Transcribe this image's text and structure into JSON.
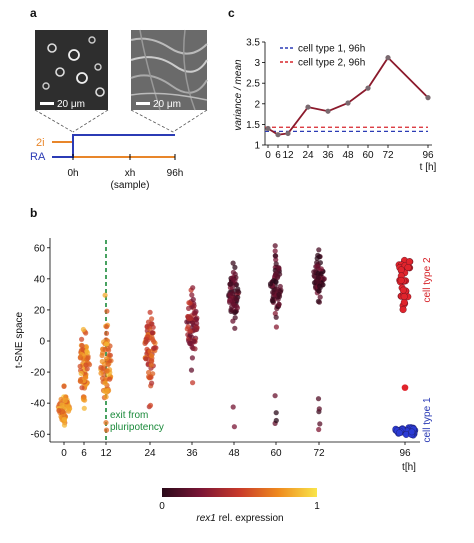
{
  "panels": {
    "a": "a",
    "b": "b",
    "c": "c"
  },
  "panel_a": {
    "scalebar_left": "20 μm",
    "scalebar_right": "20 μm",
    "label_2i": "2i",
    "label_ra": "RA",
    "tick_0h": "0h",
    "tick_xh": "xh",
    "tick_sample": "(sample)",
    "tick_96h": "96h",
    "colors": {
      "2i": "#e8862a",
      "RA": "#2b3bb5"
    }
  },
  "chart_data": [
    {
      "id": "c",
      "type": "line",
      "ylabel": "variance / mean",
      "xlabel": "t [h]",
      "x": [
        0,
        6,
        12,
        24,
        36,
        48,
        60,
        72,
        96
      ],
      "xticks": [
        "0",
        "6",
        "12",
        "24",
        "36",
        "48",
        "60",
        "72",
        "96"
      ],
      "yticks": [
        "1",
        "1.5",
        "2",
        "2.5",
        "3",
        "3.5"
      ],
      "ylim": [
        1.0,
        3.5
      ],
      "series": [
        {
          "values": [
            1.4,
            1.25,
            1.28,
            1.92,
            1.82,
            2.02,
            2.38,
            3.12,
            2.15
          ],
          "color": "#8b1a2c"
        }
      ],
      "reference_lines": [
        {
          "name": "cell type 1, 96h",
          "value": 1.33,
          "color": "#2b3bb5",
          "style": "dashed"
        },
        {
          "name": "cell type 2, 96h",
          "value": 1.43,
          "color": "#d7262c",
          "style": "dashed"
        }
      ],
      "legend_position": "top-left"
    },
    {
      "id": "b",
      "type": "scatter",
      "ylabel": "t-SNE space",
      "xlabel": "t[h]",
      "xticks": [
        "0",
        "6",
        "12",
        "24",
        "36",
        "48",
        "60",
        "72",
        "96"
      ],
      "yticks": [
        "60",
        "40",
        "20",
        "0",
        "-20",
        "-40",
        "-60"
      ],
      "ylim": [
        -65,
        65
      ],
      "annotation": "exit from\npluripotency",
      "annotation_x": 12,
      "side_label_top": "cell type 2",
      "side_label_bottom": "cell type 1",
      "colorbar": {
        "label": "rex1 rel. expression",
        "min": "0",
        "max": "1"
      },
      "columns": [
        {
          "x": 0,
          "y_center": -43,
          "spread": 6,
          "expr": 0.75
        },
        {
          "x": 6,
          "y_center": -15,
          "spread": 14,
          "expr": 0.7
        },
        {
          "x": 12,
          "y_center": -15,
          "spread": 18,
          "expr": 0.72
        },
        {
          "x": 24,
          "y_center": -5,
          "spread": 15,
          "expr": 0.55
        },
        {
          "x": 36,
          "y_center": 10,
          "spread": 15,
          "expr": 0.35
        },
        {
          "x": 48,
          "y_center": 30,
          "spread": 12,
          "expr": 0.15
        },
        {
          "x": 60,
          "y_center": 35,
          "spread": 12,
          "expr": 0.12
        },
        {
          "x": 72,
          "y_center": 42,
          "spread": 10,
          "expr": 0.1
        }
      ]
    }
  ]
}
